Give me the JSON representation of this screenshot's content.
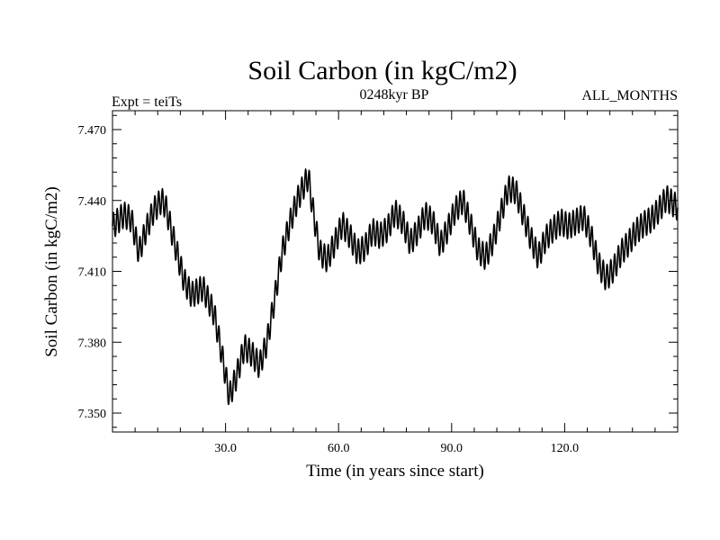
{
  "chart_data": {
    "type": "line",
    "title": "Soil Carbon (in kgC/m2)",
    "subtitle": "0248kyr BP",
    "left_label": "Expt = teiTs",
    "right_label": "ALL_MONTHS",
    "xlabel": "Time (in years since start)",
    "ylabel": "Soil Carbon (in kgC/m2)",
    "xlim": [
      0,
      150
    ],
    "ylim": [
      7.342,
      7.478
    ],
    "x_ticks": [
      30,
      60,
      90,
      120
    ],
    "x_tick_labels": [
      "30.0",
      "60.0",
      "90.0",
      "120.0"
    ],
    "y_ticks": [
      7.35,
      7.38,
      7.41,
      7.44,
      7.47
    ],
    "y_tick_labels": [
      "7.350",
      "7.380",
      "7.410",
      "7.440",
      "7.470"
    ],
    "grid": false,
    "color": "#000000",
    "series": [
      {
        "trend_x": [
          0,
          3,
          5,
          7,
          9,
          11,
          13,
          14,
          16,
          19,
          21,
          24,
          27,
          29,
          31,
          33,
          35,
          37,
          39,
          41,
          43,
          45,
          47,
          49,
          51,
          52,
          53,
          55,
          57,
          59,
          61,
          63,
          65,
          67,
          69,
          71,
          73,
          75,
          77,
          79,
          81,
          83,
          85,
          87,
          89,
          91,
          93,
          95,
          97,
          99,
          101,
          103,
          105,
          107,
          109,
          111,
          113,
          115,
          117,
          119,
          121,
          123,
          125,
          127,
          129,
          131,
          133,
          135,
          137,
          139,
          141,
          143,
          145,
          147,
          150
        ],
        "trend_y": [
          7.429,
          7.434,
          7.432,
          7.418,
          7.428,
          7.436,
          7.44,
          7.438,
          7.425,
          7.406,
          7.4,
          7.403,
          7.392,
          7.375,
          7.357,
          7.366,
          7.378,
          7.375,
          7.37,
          7.38,
          7.398,
          7.418,
          7.43,
          7.44,
          7.447,
          7.45,
          7.438,
          7.418,
          7.415,
          7.422,
          7.43,
          7.425,
          7.418,
          7.42,
          7.427,
          7.425,
          7.428,
          7.435,
          7.431,
          7.422,
          7.427,
          7.434,
          7.431,
          7.421,
          7.428,
          7.436,
          7.44,
          7.43,
          7.419,
          7.416,
          7.423,
          7.434,
          7.445,
          7.444,
          7.434,
          7.424,
          7.416,
          7.424,
          7.428,
          7.431,
          7.429,
          7.431,
          7.433,
          7.425,
          7.413,
          7.407,
          7.411,
          7.418,
          7.422,
          7.427,
          7.43,
          7.432,
          7.436,
          7.441,
          7.437
        ],
        "months_per_year": 12,
        "seasonal_amplitude": 0.0055
      }
    ]
  }
}
